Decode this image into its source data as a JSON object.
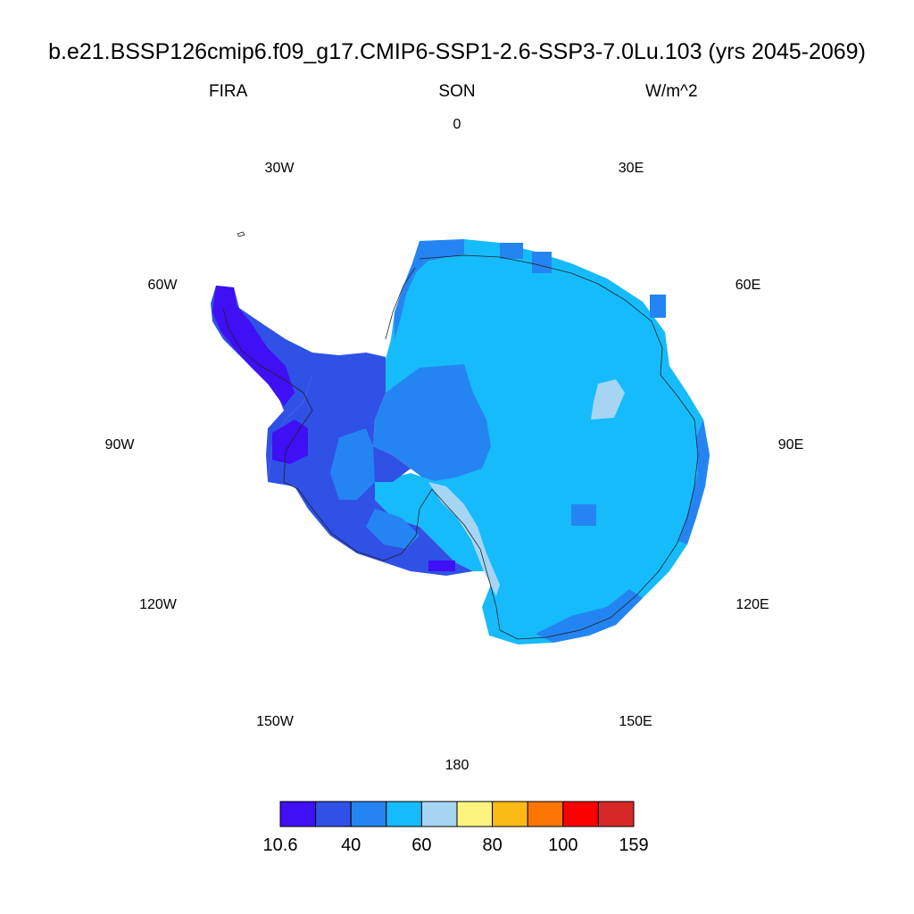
{
  "title": "b.e21.BSSP126cmip6.f09_g17.CMIP6-SSP1-2.6-SSP3-7.0Lu.103 (yrs 2045-2069)",
  "left_label": "FIRA",
  "center_label": "SON",
  "right_label": "W/m^2",
  "longitude_labels": [
    "0",
    "30E",
    "60E",
    "90E",
    "120E",
    "150E",
    "180",
    "150W",
    "120W",
    "90W",
    "60W",
    "30W"
  ],
  "colorbar": {
    "colors": [
      "#3f0ff5",
      "#2f51e6",
      "#2485f2",
      "#16bbfb",
      "#a6d5f3",
      "#fdf47f",
      "#fcbb14",
      "#fb7504",
      "#fb0000",
      "#d72828"
    ],
    "tick_labels": [
      "10.6",
      "40",
      "60",
      "80",
      "100",
      "159"
    ]
  }
}
